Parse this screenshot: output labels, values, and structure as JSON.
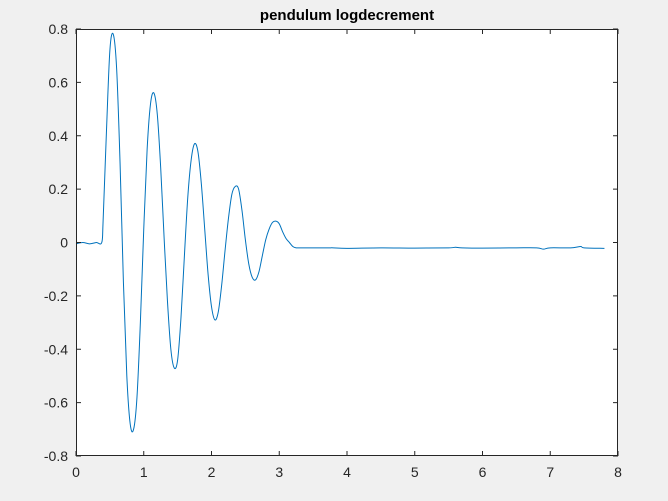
{
  "chart_data": {
    "type": "line",
    "title": "pendulum logdecrement",
    "xlabel": "",
    "ylabel": "",
    "xlim": [
      0,
      8
    ],
    "ylim": [
      -0.8,
      0.8
    ],
    "xticks": [
      0,
      1,
      2,
      3,
      4,
      5,
      6,
      7,
      8
    ],
    "xtick_labels": [
      "0",
      "1",
      "2",
      "3",
      "4",
      "5",
      "6",
      "7",
      "8"
    ],
    "yticks": [
      -0.8,
      -0.6,
      -0.4,
      -0.2,
      0,
      0.2,
      0.4,
      0.6,
      0.8
    ],
    "ytick_labels": [
      "-0.8",
      "-0.6",
      "-0.4",
      "-0.2",
      "0",
      "0.2",
      "0.4",
      "0.6",
      "0.8"
    ],
    "grid": false,
    "legend": "none",
    "colors": {
      "figure_background": "#f0f0f0",
      "axes_background": "#ffffff",
      "axes_color": "#262626",
      "line": "#0072bd"
    },
    "series": [
      {
        "color": "#0072bd",
        "x": [
          0,
          0.1,
          0.2,
          0.3,
          0.38,
          0.4,
          0.45,
          0.5,
          0.55,
          0.6,
          0.65,
          0.7,
          0.75,
          0.8,
          0.85,
          0.9,
          0.95,
          1.0,
          1.05,
          1.1,
          1.15,
          1.2,
          1.25,
          1.3,
          1.35,
          1.4,
          1.45,
          1.5,
          1.55,
          1.6,
          1.65,
          1.7,
          1.75,
          1.8,
          1.85,
          1.9,
          1.95,
          2.0,
          2.05,
          2.1,
          2.15,
          2.2,
          2.25,
          2.3,
          2.35,
          2.4,
          2.45,
          2.5,
          2.55,
          2.6,
          2.65,
          2.7,
          2.75,
          2.8,
          2.85,
          2.9,
          2.95,
          3.0,
          3.05,
          3.1,
          3.15,
          3.2,
          3.25,
          3.3,
          3.35,
          3.4,
          3.45,
          3.5,
          3.55,
          3.6,
          3.65,
          3.7,
          3.75,
          3.8,
          4.0,
          4.5,
          5.0,
          5.5,
          5.6,
          5.7,
          6.0,
          6.5,
          6.8,
          6.9,
          7.0,
          7.3,
          7.45,
          7.5,
          7.8
        ],
        "y": [
          -0.005,
          0.0,
          -0.005,
          0.0,
          0.0,
          0.08,
          0.42,
          0.72,
          0.78,
          0.65,
          0.3,
          -0.15,
          -0.5,
          -0.68,
          -0.7,
          -0.58,
          -0.3,
          0.05,
          0.35,
          0.52,
          0.56,
          0.48,
          0.28,
          0.02,
          -0.22,
          -0.4,
          -0.47,
          -0.44,
          -0.28,
          -0.05,
          0.17,
          0.31,
          0.37,
          0.34,
          0.22,
          0.05,
          -0.12,
          -0.24,
          -0.29,
          -0.26,
          -0.16,
          -0.03,
          0.09,
          0.18,
          0.21,
          0.2,
          0.12,
          0.01,
          -0.08,
          -0.13,
          -0.14,
          -0.11,
          -0.05,
          0.01,
          0.05,
          0.075,
          0.08,
          0.07,
          0.04,
          0.015,
          0.0,
          -0.015,
          -0.02,
          -0.02,
          -0.02,
          -0.02,
          -0.02,
          -0.02,
          -0.02,
          -0.02,
          -0.02,
          -0.02,
          -0.02,
          -0.02,
          -0.022,
          -0.02,
          -0.021,
          -0.02,
          -0.018,
          -0.02,
          -0.021,
          -0.02,
          -0.02,
          -0.025,
          -0.02,
          -0.02,
          -0.015,
          -0.02,
          -0.022
        ]
      }
    ]
  }
}
